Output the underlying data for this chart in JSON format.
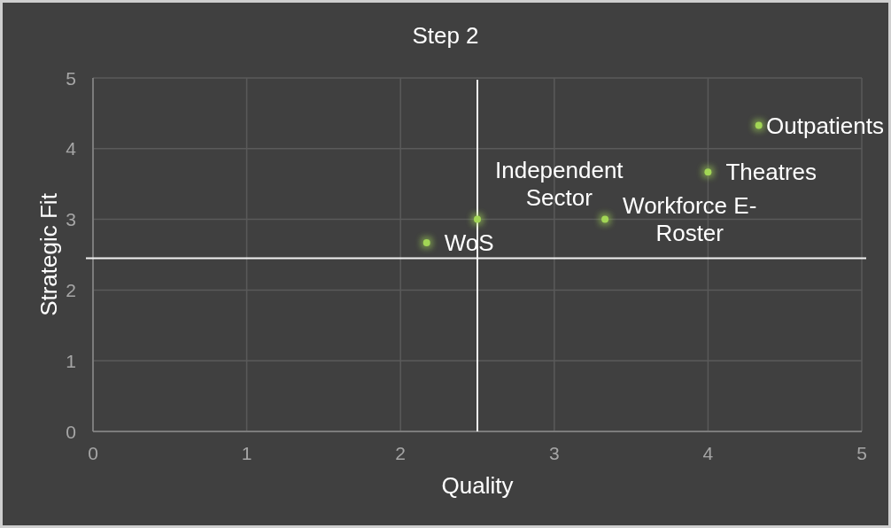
{
  "chart_data": {
    "type": "scatter",
    "title": "Step 2",
    "xlabel": "Quality",
    "ylabel": "Strategic Fit",
    "x": [
      2.17,
      2.5,
      3.33,
      4,
      4.33
    ],
    "series": [
      {
        "color": "#a2d655",
        "values": [
          2.67,
          3,
          3,
          3.67,
          4.33
        ]
      }
    ],
    "xlim": [
      0,
      5
    ],
    "ylim": [
      0,
      5
    ],
    "xticks": [
      0,
      1,
      2,
      3,
      4,
      5
    ],
    "yticks": [
      0,
      1,
      2,
      3,
      4,
      5
    ],
    "grid": true,
    "marker": "circle",
    "ref_lines": [
      {
        "axis": "x",
        "value": 2.5,
        "color": "#f2f2f2"
      },
      {
        "axis": "y",
        "value": 2.45,
        "color": "#f2f2f2"
      }
    ],
    "annotations": [
      {
        "text": "WoS",
        "x": 2.17,
        "y": 2.67
      },
      {
        "text": "Independent Sector",
        "x": 2.5,
        "y": 3
      },
      {
        "text": "Workforce E-Roster",
        "x": 3.33,
        "y": 3
      },
      {
        "text": "Theatres",
        "x": 4,
        "y": 3.67
      },
      {
        "text": "Outpatients",
        "x": 4.33,
        "y": 4.33
      }
    ]
  }
}
